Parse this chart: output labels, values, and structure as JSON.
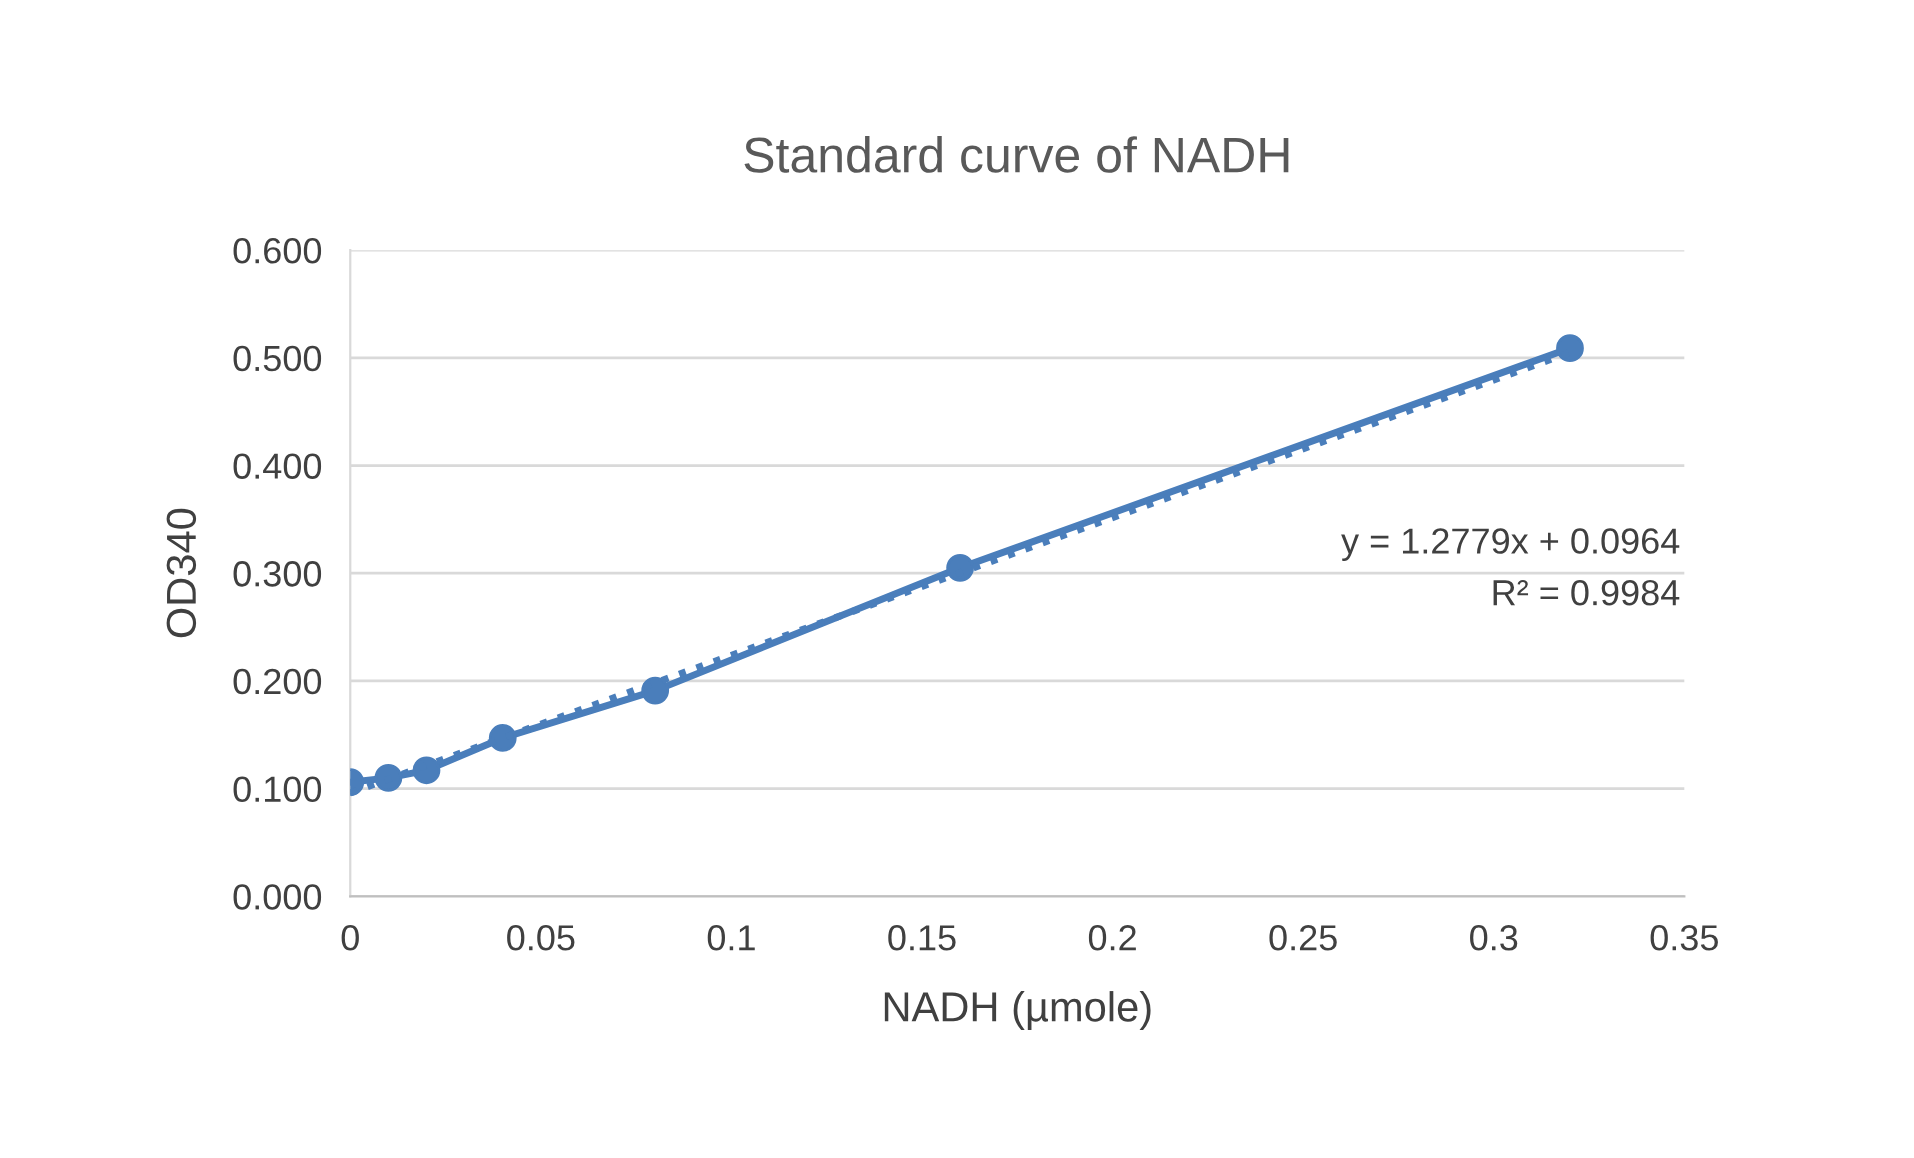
{
  "chart_data": {
    "type": "line",
    "title": "Standard curve of NADH",
    "xlabel": "NADH (µmole)",
    "ylabel": "OD340",
    "xlim": [
      0,
      0.35
    ],
    "xticks": [
      0,
      0.05,
      0.1,
      0.15,
      0.2,
      0.25,
      0.3,
      0.35
    ],
    "ylim": [
      0,
      0.6
    ],
    "yticks": [
      {
        "value": 0,
        "label": "0.000"
      },
      {
        "value": 0.1,
        "label": "0.100"
      },
      {
        "value": 0.2,
        "label": "0.200"
      },
      {
        "value": 0.3,
        "label": "0.300"
      },
      {
        "value": 0.4,
        "label": "0.400"
      },
      {
        "value": 0.5,
        "label": "0.500"
      },
      {
        "value": 0.6,
        "label": "0.600"
      }
    ],
    "grid": "y",
    "legend": false,
    "series": [
      {
        "color": "#4a7ebb",
        "marker": "circle",
        "line_style": "solid",
        "x": [
          0,
          0.01,
          0.02,
          0.04,
          0.08,
          0.16,
          0.32
        ],
        "values": [
          0.106,
          0.11,
          0.117,
          0.147,
          0.191,
          0.305,
          0.509
        ]
      },
      {
        "color": "#4a7ebb",
        "marker": "none",
        "line_style": "dotted",
        "x": [
          0,
          0.32
        ],
        "values": [
          0.096,
          0.505
        ]
      }
    ],
    "annotations": [
      "y = 1.2779x + 0.0964",
      "R² = 0.9984"
    ]
  }
}
